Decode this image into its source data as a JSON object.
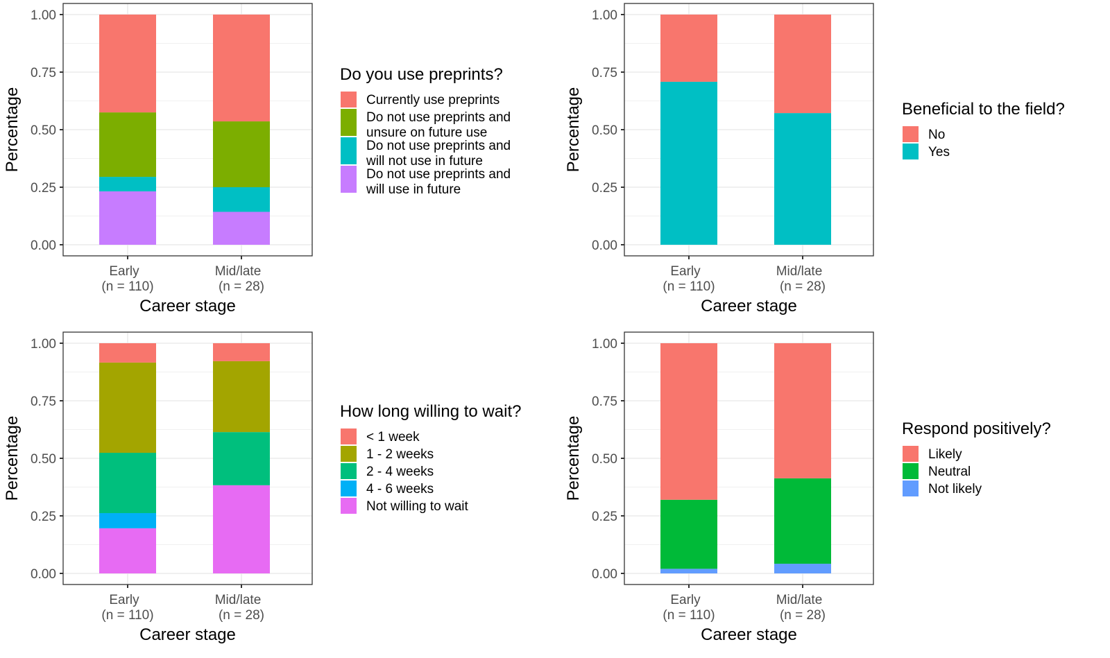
{
  "chart_data": [
    {
      "type": "bar",
      "stacked": true,
      "title": "",
      "xlabel": "Career stage",
      "ylabel": "Percentage",
      "ylim": [
        0,
        1
      ],
      "yticks": [
        "0.00",
        "0.25",
        "0.50",
        "0.75",
        "1.00"
      ],
      "categories": [
        "Early\n(n = 110)",
        "Mid/late\n(n = 28)"
      ],
      "category_lines": [
        [
          "Early",
          "(n = 110)"
        ],
        [
          "Mid/late",
          "(n = 28)"
        ]
      ],
      "legend_title": "Do you use preprints?",
      "legend_placement": "right",
      "grid": true,
      "series": [
        {
          "name": "Currently use preprints",
          "color": "#F8766D",
          "values": [
            0.425,
            0.464
          ]
        },
        {
          "name": "Do not use preprints and unsure on future use",
          "legend_lines": [
            "Do not use preprints and",
            "unsure on future use"
          ],
          "color": "#7CAE00",
          "values": [
            0.28,
            0.286
          ]
        },
        {
          "name": "Do not use preprints and will not use in future",
          "legend_lines": [
            "Do not use preprints and",
            "will not use in future"
          ],
          "color": "#00BFC4",
          "values": [
            0.063,
            0.107
          ]
        },
        {
          "name": "Do not use preprints and will use in future",
          "legend_lines": [
            "Do not use preprints and",
            "will use in future"
          ],
          "color": "#C77CFF",
          "values": [
            0.232,
            0.143
          ]
        }
      ]
    },
    {
      "type": "bar",
      "stacked": true,
      "title": "",
      "xlabel": "Career stage",
      "ylabel": "Percentage",
      "ylim": [
        0,
        1
      ],
      "yticks": [
        "0.00",
        "0.25",
        "0.50",
        "0.75",
        "1.00"
      ],
      "categories": [
        "Early\n(n = 110)",
        "Mid/late\n(n = 28)"
      ],
      "category_lines": [
        [
          "Early",
          "(n = 110)"
        ],
        [
          "Mid/late",
          "(n = 28)"
        ]
      ],
      "legend_title": "Beneficial to the field?",
      "legend_placement": "right",
      "grid": true,
      "series": [
        {
          "name": "No",
          "color": "#F8766D",
          "values": [
            0.292,
            0.428
          ]
        },
        {
          "name": "Yes",
          "color": "#00BFC4",
          "values": [
            0.708,
            0.572
          ]
        }
      ]
    },
    {
      "type": "bar",
      "stacked": true,
      "title": "",
      "xlabel": "Career stage",
      "ylabel": "Percentage",
      "ylim": [
        0,
        1
      ],
      "yticks": [
        "0.00",
        "0.25",
        "0.50",
        "0.75",
        "1.00"
      ],
      "categories": [
        "Early\n(n = 110)",
        "Mid/late\n(n = 28)"
      ],
      "category_lines": [
        [
          "Early",
          "(n = 110)"
        ],
        [
          "Mid/late",
          "(n = 28)"
        ]
      ],
      "legend_title": "How long willing to wait?",
      "legend_placement": "right",
      "grid": true,
      "series": [
        {
          "name": "< 1 week",
          "color": "#F8766D",
          "values": [
            0.084,
            0.078
          ]
        },
        {
          "name": "1 - 2 weeks",
          "color": "#A3A500",
          "values": [
            0.392,
            0.308
          ]
        },
        {
          "name": "2 - 4 weeks",
          "color": "#00BF7D",
          "values": [
            0.262,
            0.231
          ]
        },
        {
          "name": "4 - 6 weeks",
          "color": "#00B0F6",
          "values": [
            0.066,
            0.0
          ]
        },
        {
          "name": "Not willing to wait",
          "color": "#E76BF3",
          "values": [
            0.196,
            0.383
          ]
        }
      ]
    },
    {
      "type": "bar",
      "stacked": true,
      "title": "",
      "xlabel": "Career stage",
      "ylabel": "Percentage",
      "ylim": [
        0,
        1
      ],
      "yticks": [
        "0.00",
        "0.25",
        "0.50",
        "0.75",
        "1.00"
      ],
      "categories": [
        "Early\n(n = 110)",
        "Mid/late\n(n = 28)"
      ],
      "category_lines": [
        [
          "Early",
          "(n = 110)"
        ],
        [
          "Mid/late",
          "(n = 28)"
        ]
      ],
      "legend_title": "Respond positively?",
      "legend_placement": "right",
      "grid": true,
      "series": [
        {
          "name": "Likely",
          "color": "#F8766D",
          "values": [
            0.68,
            0.587
          ]
        },
        {
          "name": "Neutral",
          "color": "#00BA38",
          "values": [
            0.3,
            0.371
          ]
        },
        {
          "name": "Not likely",
          "color": "#619CFF",
          "values": [
            0.02,
            0.042
          ]
        }
      ]
    }
  ]
}
